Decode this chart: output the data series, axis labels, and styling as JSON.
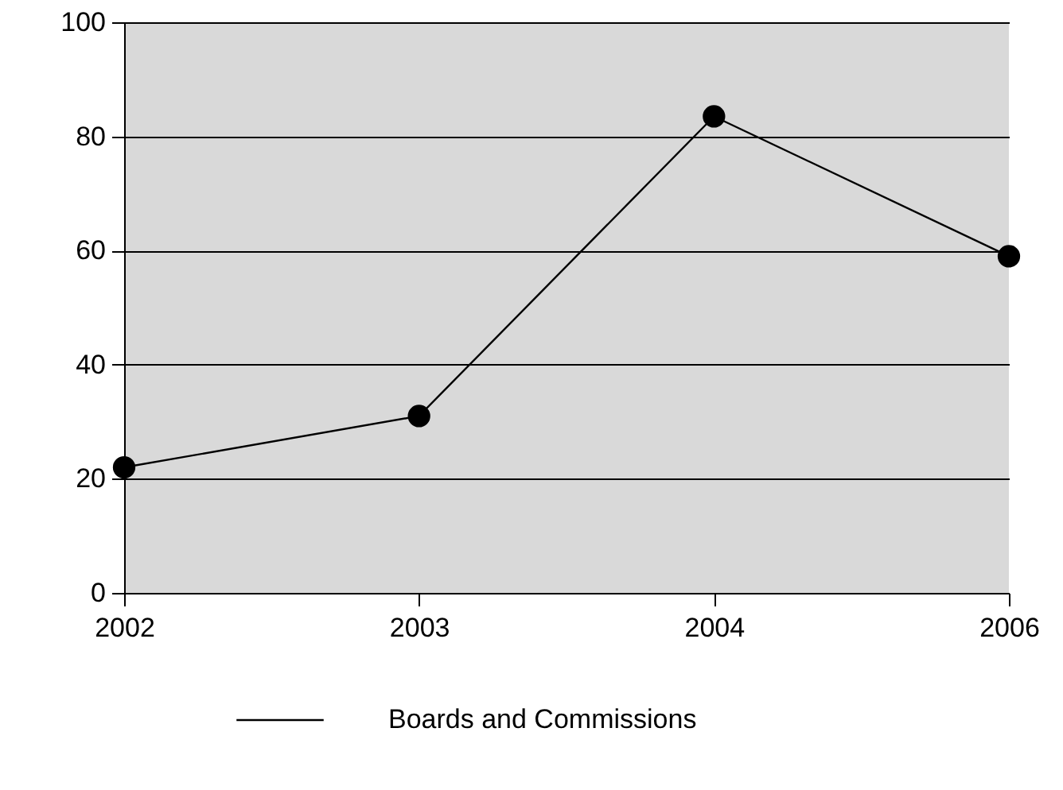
{
  "chart_data": {
    "type": "line",
    "categories": [
      "2002",
      "2003",
      "2004",
      "2006"
    ],
    "series": [
      {
        "name": "Boards and Commissions",
        "color": "#000000",
        "values": [
          22,
          31,
          83.5,
          59
        ]
      }
    ],
    "ylim": [
      0,
      100
    ],
    "yticks": [
      0,
      20,
      40,
      60,
      80,
      100
    ],
    "grid": "y",
    "legend": "bottom",
    "marker": "circle"
  }
}
